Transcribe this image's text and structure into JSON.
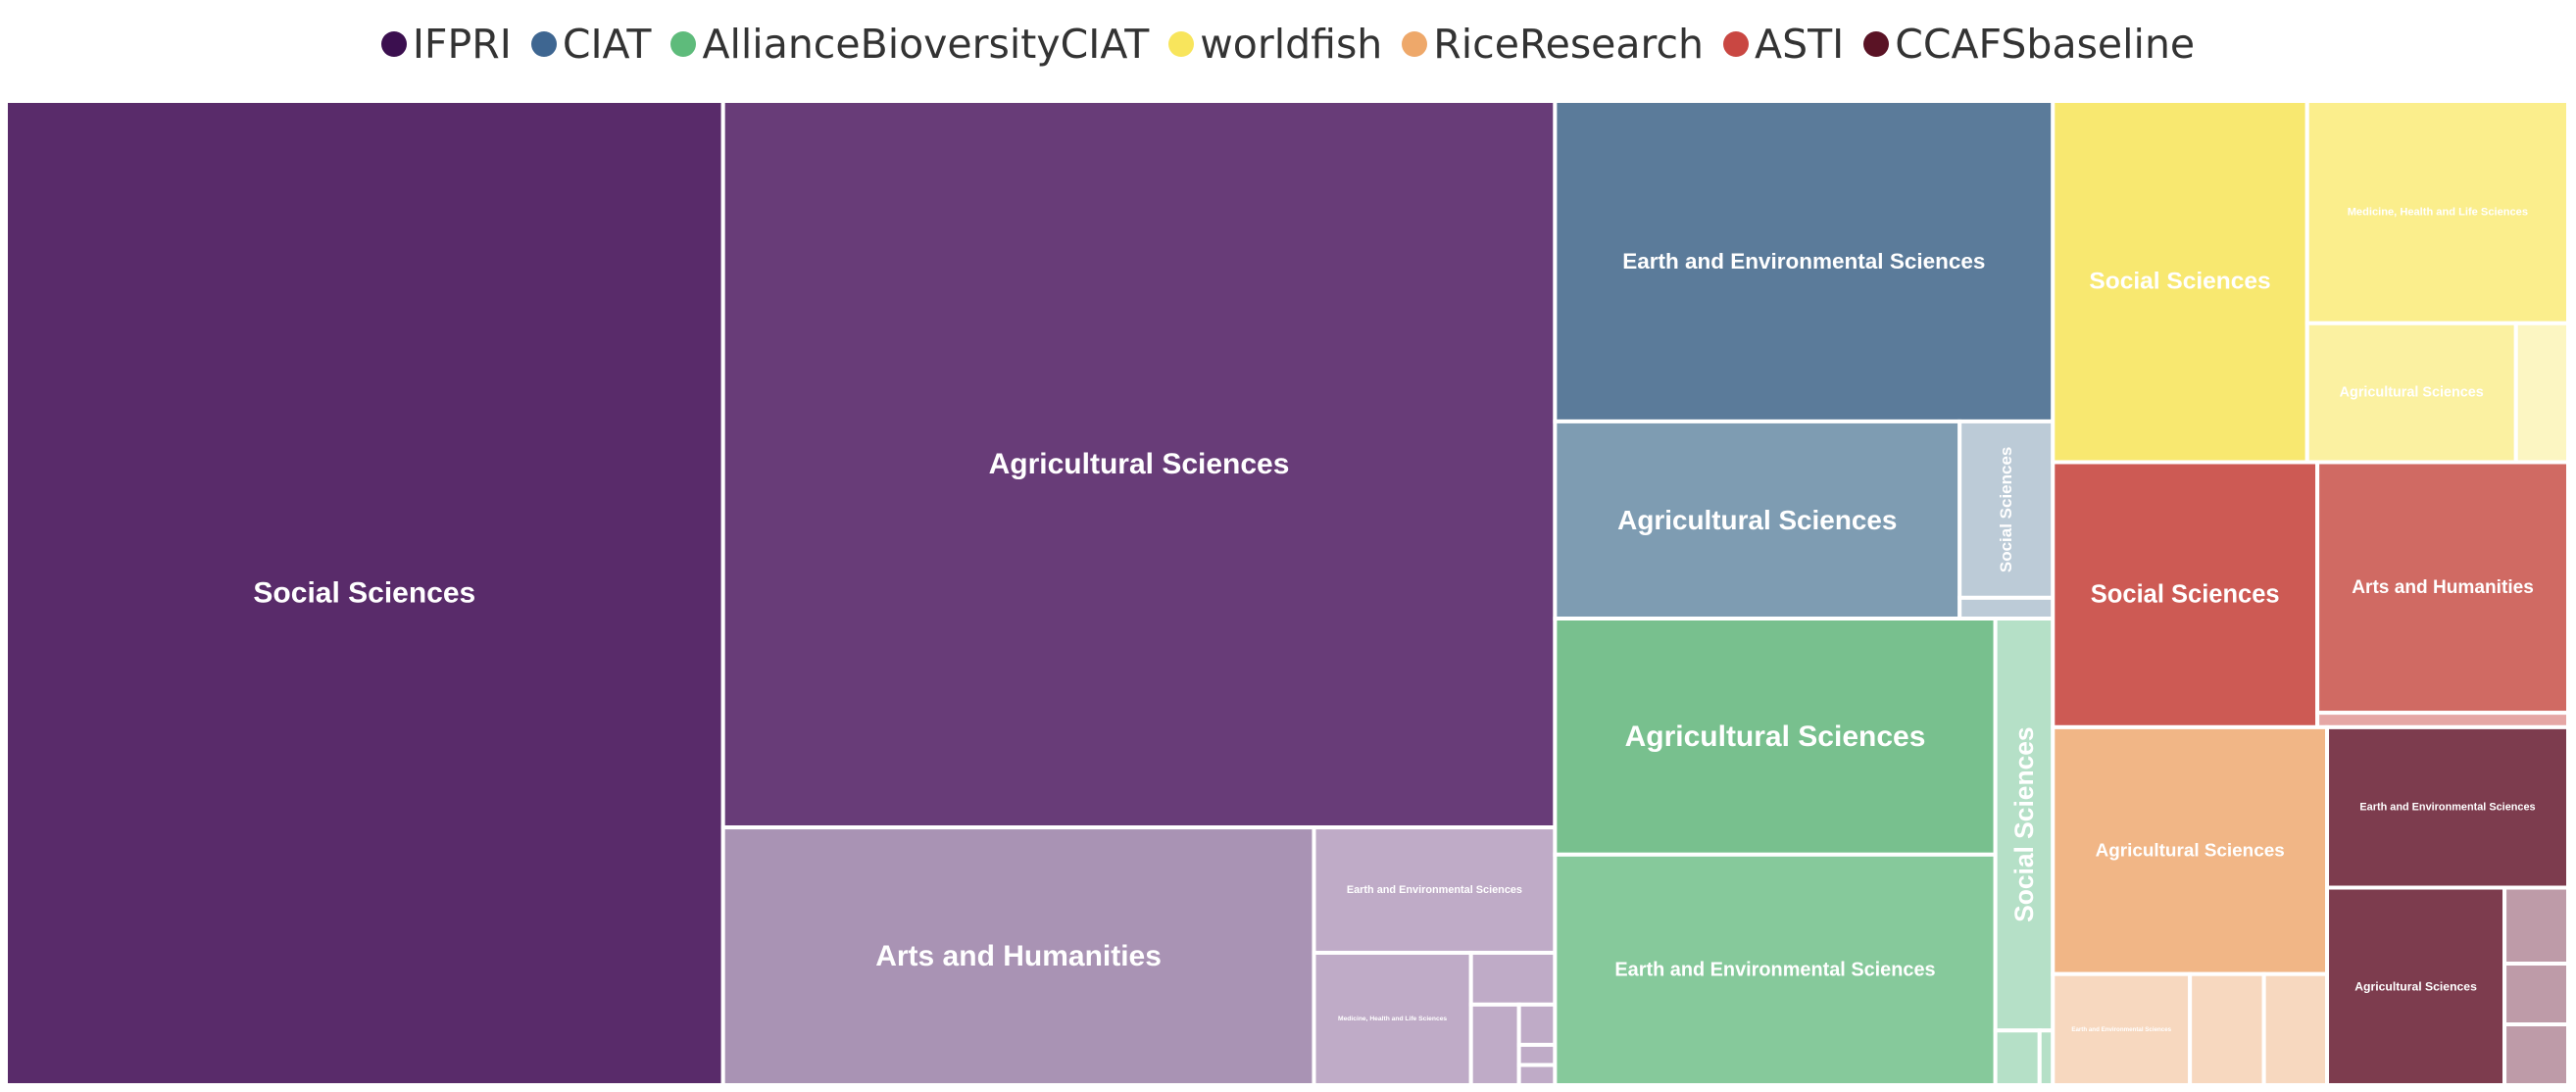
{
  "chart_data": {
    "type": "treemap",
    "legend_position": "top-center",
    "legend": [
      {
        "name": "IFPRI",
        "color": "#3b0f4f"
      },
      {
        "name": "CIAT",
        "color": "#3e6691"
      },
      {
        "name": "AllianceBioversityCIAT",
        "color": "#5ebb7b"
      },
      {
        "name": "worldfish",
        "color": "#f8e55c"
      },
      {
        "name": "RiceResearch",
        "color": "#eea86a"
      },
      {
        "name": "ASTI",
        "color": "#c94742"
      },
      {
        "name": "CCAFSbaseline",
        "color": "#5a1325"
      }
    ],
    "groups": [
      {
        "name": "IFPRI",
        "cells": [
          {
            "label": "Agricultural Sciences",
            "value": 250000,
            "color": "#683c78"
          },
          {
            "label": "Arts and Humanities",
            "value": 63000,
            "color": "#a993b4"
          },
          {
            "label": "",
            "value": 1600,
            "color": "#bfabc7"
          },
          {
            "label": "",
            "value": 300,
            "color": "#bfabc7"
          },
          {
            "label": "",
            "value": 1800,
            "color": "#bfabc7"
          },
          {
            "label": "Earth and Environmental Sciences",
            "value": 12500,
            "color": "#bfabc7"
          },
          {
            "label": "Medicine, Health and Life Sciences",
            "value": 8600,
            "color": "#bfabc7"
          },
          {
            "label": "",
            "value": 600,
            "color": "#bfabc7"
          },
          {
            "label": "",
            "value": 300,
            "color": "#bfabc7"
          },
          {
            "label": "Social Sciences",
            "value": 292000,
            "color": "#592b6a"
          }
        ]
      },
      {
        "name": "CIAT",
        "cells": [
          {
            "label": "Agricultural Sciences",
            "value": 33000,
            "color": "#7e9cb2"
          },
          {
            "label": "Earth and Environmental Sciences",
            "value": 66000,
            "color": "#5b7b9a"
          },
          {
            "label": "",
            "value": 800,
            "color": "#bccbd7"
          },
          {
            "label": "Social Sciences",
            "value": 6800,
            "color": "#bccbd7"
          }
        ]
      },
      {
        "name": "AllianceBioversityCIAT",
        "cells": [
          {
            "label": "Agricultural Sciences",
            "value": 43000,
            "color": "#78c08e"
          },
          {
            "label": "Earth and Environmental Sciences",
            "value": 42000,
            "color": "#86c99b"
          },
          {
            "label": "",
            "value": 1000,
            "color": "#b5e0c7"
          },
          {
            "label": "",
            "value": 300,
            "color": "#b5e0c7"
          },
          {
            "label": "Social Sciences",
            "value": 9800,
            "color": "#b5e0c7"
          }
        ]
      },
      {
        "name": "worldfish",
        "cells": [
          {
            "label": "Agricultural Sciences",
            "value": 12000,
            "color": "#fbf1a1"
          },
          {
            "label": "",
            "value": 3000,
            "color": "#fcf6c2"
          },
          {
            "label": "Medicine, Health and Life Sciences",
            "value": 24000,
            "color": "#fbee8c"
          },
          {
            "label": "Social Sciences",
            "value": 38000,
            "color": "#f8e870"
          }
        ]
      },
      {
        "name": "RiceResearch",
        "cells": [
          {
            "label": "Agricultural Sciences",
            "value": 28000,
            "color": "#f1b686"
          },
          {
            "label": "Earth and Environmental Sciences",
            "value": 6300,
            "color": "#f7d8bf"
          },
          {
            "label": "",
            "value": 2900,
            "color": "#f7d8bf"
          },
          {
            "label": "",
            "value": 3400,
            "color": "#f7d8bf"
          }
        ]
      },
      {
        "name": "ASTI",
        "cells": [
          {
            "label": "",
            "value": 1500,
            "color": "#e5a7a5"
          },
          {
            "label": "Arts and Humanities",
            "value": 26000,
            "color": "#d06a63"
          },
          {
            "label": "Social Sciences",
            "value": 29000,
            "color": "#cd5a54"
          }
        ]
      },
      {
        "name": "CCAFSbaseline",
        "cells": [
          {
            "label": "Agricultural Sciences",
            "value": 14500,
            "color": "#7d3c4e"
          },
          {
            "label": "Earth and Environmental Sciences",
            "value": 16000,
            "color": "#7d3c4e"
          },
          {
            "label": "",
            "value": 1600,
            "color": "#be9ba8"
          },
          {
            "label": "",
            "value": 1600,
            "color": "#be9ba8"
          },
          {
            "label": "",
            "value": 2000,
            "color": "#be9ba8"
          }
        ]
      }
    ]
  }
}
